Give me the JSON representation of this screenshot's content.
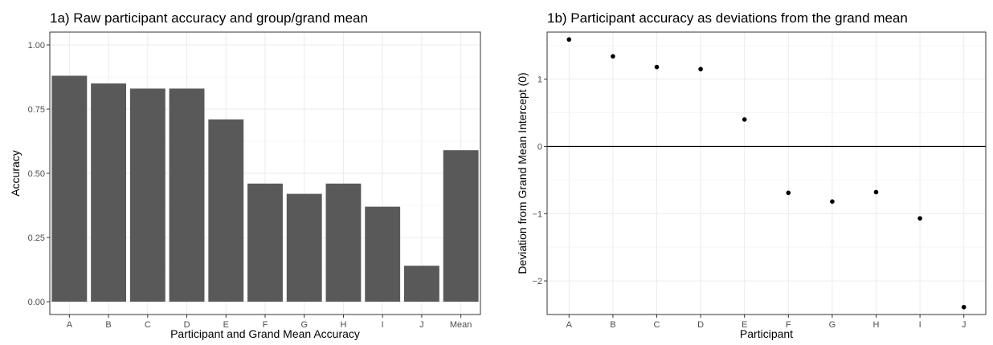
{
  "colors": {
    "bar_fill": "#595959",
    "point_fill": "#000000",
    "grid_major": "#ebebeb",
    "grid_minor": "#f5f5f5",
    "panel_border": "#333333",
    "tick_text": "#4d4d4d",
    "zero_line": "#000000"
  },
  "chart_data": [
    {
      "type": "bar",
      "title": "1a) Raw participant accuracy and group/grand mean",
      "xlabel": "Participant and Grand Mean Accuracy",
      "ylabel": "Accuracy",
      "categories": [
        "A",
        "B",
        "C",
        "D",
        "E",
        "F",
        "G",
        "H",
        "I",
        "J",
        "Mean"
      ],
      "values": [
        0.88,
        0.85,
        0.83,
        0.83,
        0.71,
        0.46,
        0.42,
        0.46,
        0.37,
        0.14,
        0.59
      ],
      "ylim": [
        -0.05,
        1.05
      ],
      "yticks": [
        0.0,
        0.25,
        0.5,
        0.75,
        1.0
      ],
      "ytick_labels": [
        "0.00",
        "0.25",
        "0.50",
        "0.75",
        "1.00"
      ],
      "grid": true,
      "legend": "none"
    },
    {
      "type": "scatter",
      "title": "1b) Participant accuracy as deviations from the grand mean",
      "xlabel": "Participant",
      "ylabel": "Deviation from Grand Mean Intercept (0)",
      "categories": [
        "A",
        "B",
        "C",
        "D",
        "E",
        "F",
        "G",
        "H",
        "I",
        "J"
      ],
      "values": [
        1.59,
        1.34,
        1.18,
        1.15,
        0.4,
        -0.69,
        -0.82,
        -0.68,
        -1.07,
        -2.39
      ],
      "ylim": [
        -2.5,
        1.7
      ],
      "yticks": [
        -2,
        -1,
        0,
        1
      ],
      "ytick_labels": [
        "−2",
        "−1",
        "0",
        "1"
      ],
      "reference_line_y": 0,
      "grid": true,
      "legend": "none"
    }
  ]
}
